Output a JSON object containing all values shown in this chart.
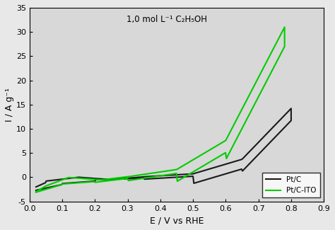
{
  "title_annotation": "1,0 mol L⁻¹ C₂H₅OH",
  "xlabel": "E / V vs RHE",
  "ylabel": "I / A g⁻¹",
  "xlim": [
    0.0,
    0.9
  ],
  "ylim": [
    -5,
    35
  ],
  "xticks": [
    0.0,
    0.1,
    0.2,
    0.3,
    0.4,
    0.5,
    0.6,
    0.7,
    0.8,
    0.9
  ],
  "yticks": [
    -5,
    0,
    5,
    10,
    15,
    20,
    25,
    30,
    35
  ],
  "xtick_labels": [
    "0.0",
    "0.1",
    "0.2",
    "0.3",
    "0.4",
    "0.5",
    "0.6",
    "0.7",
    "0.8",
    "0.9"
  ],
  "ytick_labels": [
    "-5",
    "0",
    "5",
    "10",
    "15",
    "20",
    "25",
    "30",
    "35"
  ],
  "color_black": "#1a1a1a",
  "color_green": "#00cc00",
  "legend_labels": [
    "Pt/C",
    "Pt/C-ITO"
  ],
  "background_color": "#d8d8d8",
  "fig_bg": "#e8e8e8"
}
